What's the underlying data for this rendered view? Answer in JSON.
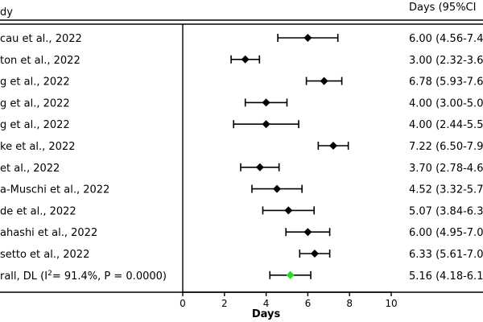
{
  "header": {
    "study_label": "dy",
    "estimate_label": "Days (95%CI"
  },
  "chart_data": {
    "type": "forest",
    "xlabel": "Days",
    "xlim": [
      0,
      10
    ],
    "xticks": [
      0,
      2,
      4,
      6,
      8,
      10
    ],
    "reference_line": 0,
    "studies": [
      {
        "label": "cau et al., 2022",
        "est": 6.0,
        "lo": 4.56,
        "hi": 7.44,
        "text": "6.00 (4.56-7.4"
      },
      {
        "label": "ton et al., 2022",
        "est": 3.0,
        "lo": 2.32,
        "hi": 3.68,
        "text": "3.00 (2.32-3.6"
      },
      {
        "label": "g et al., 2022",
        "est": 6.78,
        "lo": 5.93,
        "hi": 7.63,
        "text": "6.78 (5.93-7.6"
      },
      {
        "label": "g et al., 2022",
        "est": 4.0,
        "lo": 3.0,
        "hi": 5.0,
        "text": "4.00 (3.00-5.0"
      },
      {
        "label": "g et al., 2022",
        "est": 4.0,
        "lo": 2.44,
        "hi": 5.56,
        "text": "4.00 (2.44-5.5"
      },
      {
        "label": "ke et al., 2022",
        "est": 7.22,
        "lo": 6.5,
        "hi": 7.94,
        "text": "7.22 (6.50-7.9"
      },
      {
        "label": "et al., 2022",
        "est": 3.7,
        "lo": 2.78,
        "hi": 4.62,
        "text": "3.70 (2.78-4.6"
      },
      {
        "label": "a-Muschi et al., 2022",
        "est": 4.52,
        "lo": 3.32,
        "hi": 5.72,
        "text": "4.52 (3.32-5.7"
      },
      {
        "label": "de et al., 2022",
        "est": 5.07,
        "lo": 3.84,
        "hi": 6.3,
        "text": "5.07 (3.84-6.3"
      },
      {
        "label": "ahashi et al., 2022",
        "est": 6.0,
        "lo": 4.95,
        "hi": 7.05,
        "text": "6.00 (4.95-7.0"
      },
      {
        "label": "setto et al., 2022",
        "est": 6.33,
        "lo": 5.61,
        "hi": 7.05,
        "text": "6.33 (5.61-7.0"
      }
    ],
    "overall": {
      "label_prefix": "rall, DL (I",
      "label_sup": "2",
      "label_suffix": "= 91.4%, P = 0.0000)",
      "est": 5.16,
      "lo": 4.18,
      "hi": 6.14,
      "text": "5.16 (4.18-6.1",
      "color": "#22dd22"
    },
    "marker_color": "#000000",
    "line_color": "#000000"
  }
}
